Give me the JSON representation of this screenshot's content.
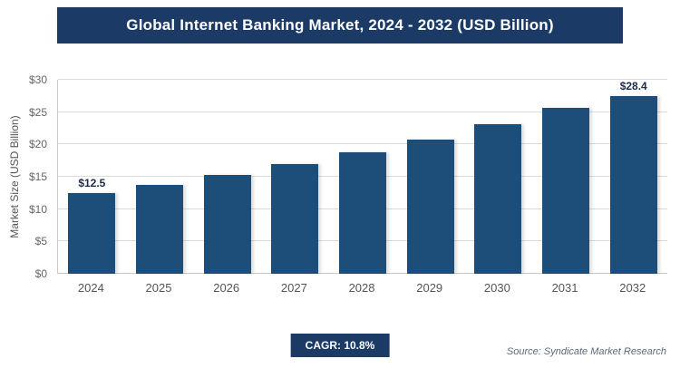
{
  "header": {
    "title": "Global Internet Banking Market, 2024 - 2032 (USD Billion)"
  },
  "chart_data": {
    "type": "bar",
    "title": "Global Internet Banking Market, 2024 - 2032 (USD Billion)",
    "categories": [
      "2024",
      "2025",
      "2026",
      "2027",
      "2028",
      "2029",
      "2030",
      "2031",
      "2032"
    ],
    "values": [
      12.5,
      13.8,
      15.3,
      17.0,
      18.8,
      20.8,
      23.1,
      25.6,
      28.4
    ],
    "data_labels": [
      "$12.5",
      "",
      "",
      "",
      "",
      "",
      "",
      "",
      "$28.4"
    ],
    "xlabel": "",
    "ylabel": "Market Size (USD Billion)",
    "ylim": [
      0,
      30
    ],
    "ytick_step": 5,
    "ytick_labels": [
      "$0",
      "$5",
      "$10",
      "$15",
      "$20",
      "$25",
      "$30"
    ],
    "grid": true,
    "legend": "none",
    "bar_color": "#1d4e79"
  },
  "footer": {
    "cagr_label": "CAGR: 10.8%",
    "source": "Source: Syndicate Market Research"
  },
  "colors": {
    "header_bg": "#1b3a66",
    "badge_bg": "#1b3a66",
    "bar": "#1d4e79",
    "gridline": "#dcdcdc"
  }
}
